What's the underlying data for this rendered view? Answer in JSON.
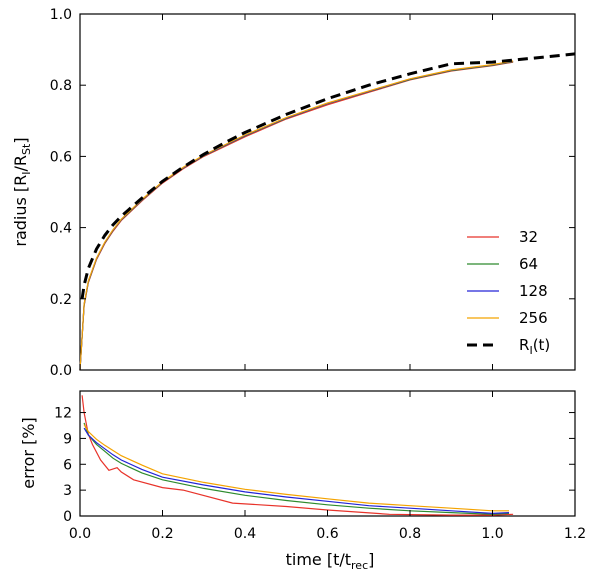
{
  "chart_data": [
    {
      "type": "line",
      "title": "",
      "xlabel": "",
      "ylabel": {
        "base": "radius [R",
        "sub1": "I",
        "mid": "/R",
        "sub2": "St",
        "close": "]"
      },
      "xlim": [
        0.0,
        1.2
      ],
      "ylim": [
        0.0,
        1.0
      ],
      "xticks": [
        "0.0",
        "0.2",
        "0.4",
        "0.6",
        "0.8",
        "1.0",
        "1.2"
      ],
      "yticks": [
        "0.0",
        "0.2",
        "0.4",
        "0.6",
        "0.8",
        "1.0"
      ],
      "xtick_values": [
        0.0,
        0.2,
        0.4,
        0.6,
        0.8,
        1.0,
        1.2
      ],
      "ytick_values": [
        0.0,
        0.2,
        0.4,
        0.6,
        0.8,
        1.0
      ],
      "grid": false,
      "legend_position": "lower-right",
      "series": [
        {
          "name": "32",
          "color": "#e8332a",
          "dash": "solid",
          "x": [
            0.0,
            0.01,
            0.02,
            0.04,
            0.06,
            0.08,
            0.1,
            0.15,
            0.2,
            0.25,
            0.3,
            0.4,
            0.5,
            0.6,
            0.7,
            0.8,
            0.9,
            1.0,
            1.05
          ],
          "y": [
            0.0,
            0.18,
            0.245,
            0.31,
            0.355,
            0.39,
            0.42,
            0.475,
            0.525,
            0.565,
            0.6,
            0.655,
            0.705,
            0.745,
            0.78,
            0.815,
            0.84,
            0.855,
            0.865
          ]
        },
        {
          "name": "64",
          "color": "#2e8b2e",
          "dash": "solid",
          "x": [
            0.0,
            0.01,
            0.02,
            0.04,
            0.06,
            0.08,
            0.1,
            0.15,
            0.2,
            0.25,
            0.3,
            0.4,
            0.5,
            0.6,
            0.7,
            0.8,
            0.9,
            1.0,
            1.05
          ],
          "y": [
            0.0,
            0.182,
            0.247,
            0.312,
            0.357,
            0.392,
            0.422,
            0.477,
            0.527,
            0.567,
            0.602,
            0.658,
            0.707,
            0.748,
            0.782,
            0.816,
            0.841,
            0.856,
            0.866
          ]
        },
        {
          "name": "128",
          "color": "#2424d6",
          "dash": "solid",
          "x": [
            0.0,
            0.01,
            0.02,
            0.04,
            0.06,
            0.08,
            0.1,
            0.15,
            0.2,
            0.25,
            0.3,
            0.4,
            0.5,
            0.6,
            0.7,
            0.8,
            0.9,
            1.0,
            1.05
          ],
          "y": [
            0.0,
            0.184,
            0.249,
            0.313,
            0.358,
            0.393,
            0.423,
            0.478,
            0.528,
            0.568,
            0.603,
            0.659,
            0.708,
            0.749,
            0.783,
            0.817,
            0.842,
            0.857,
            0.867
          ]
        },
        {
          "name": "256",
          "color": "#f4a300",
          "dash": "solid",
          "x": [
            0.0,
            0.01,
            0.02,
            0.04,
            0.06,
            0.08,
            0.1,
            0.15,
            0.2,
            0.25,
            0.3,
            0.4,
            0.5,
            0.6,
            0.7,
            0.8,
            0.9,
            1.0,
            1.05
          ],
          "y": [
            0.0,
            0.185,
            0.25,
            0.314,
            0.359,
            0.394,
            0.424,
            0.479,
            0.529,
            0.569,
            0.604,
            0.66,
            0.709,
            0.75,
            0.784,
            0.818,
            0.843,
            0.858,
            0.868
          ]
        },
        {
          "name": {
            "base": "R",
            "sub": "I",
            "suffix": "(t)"
          },
          "color": "#000000",
          "dash": "dashed",
          "x": [
            0.005,
            0.01,
            0.02,
            0.04,
            0.06,
            0.08,
            0.1,
            0.15,
            0.2,
            0.25,
            0.3,
            0.35,
            0.4,
            0.5,
            0.6,
            0.7,
            0.8,
            0.9,
            1.0,
            1.1,
            1.2
          ],
          "y": [
            0.2,
            0.238,
            0.285,
            0.34,
            0.378,
            0.408,
            0.432,
            0.483,
            0.53,
            0.57,
            0.606,
            0.638,
            0.667,
            0.718,
            0.762,
            0.8,
            0.832,
            0.86,
            0.865,
            0.876,
            0.888
          ]
        }
      ]
    },
    {
      "type": "line",
      "title": "",
      "xlabel": {
        "base": "time [t/t",
        "sub": "rec",
        "close": "]"
      },
      "ylabel": "error [%]",
      "xlim": [
        0.0,
        1.2
      ],
      "ylim": [
        0.0,
        14.5
      ],
      "xticks": [
        "0.0",
        "0.2",
        "0.4",
        "0.6",
        "0.8",
        "1.0",
        "1.2"
      ],
      "yticks": [
        "0",
        "3",
        "6",
        "9",
        "12"
      ],
      "xtick_values": [
        0.0,
        0.2,
        0.4,
        0.6,
        0.8,
        1.0,
        1.2
      ],
      "ytick_values": [
        0,
        3,
        6,
        9,
        12
      ],
      "grid": false,
      "series": [
        {
          "name": "32",
          "color": "#e8332a",
          "x": [
            0.005,
            0.01,
            0.02,
            0.03,
            0.05,
            0.07,
            0.09,
            0.1,
            0.13,
            0.2,
            0.25,
            0.37,
            0.5,
            0.6,
            0.75,
            0.9,
            1.0,
            1.05
          ],
          "y": [
            14.0,
            12.0,
            9.5,
            8.3,
            6.5,
            5.3,
            5.6,
            5.1,
            4.2,
            3.3,
            3.0,
            1.5,
            1.1,
            0.7,
            0.2,
            0.1,
            0.1,
            0.2
          ]
        },
        {
          "name": "64",
          "color": "#2e8b2e",
          "x": [
            0.01,
            0.02,
            0.04,
            0.06,
            0.08,
            0.1,
            0.15,
            0.2,
            0.3,
            0.4,
            0.5,
            0.6,
            0.7,
            0.8,
            0.9,
            1.0,
            1.04
          ],
          "y": [
            10.8,
            9.4,
            8.3,
            7.5,
            6.7,
            6.1,
            5.0,
            4.2,
            3.2,
            2.4,
            1.8,
            1.3,
            0.9,
            0.6,
            0.4,
            0.2,
            0.3
          ]
        },
        {
          "name": "128",
          "color": "#2424d6",
          "x": [
            0.01,
            0.02,
            0.04,
            0.06,
            0.08,
            0.1,
            0.15,
            0.2,
            0.3,
            0.4,
            0.5,
            0.6,
            0.7,
            0.8,
            0.9,
            1.0,
            1.04
          ],
          "y": [
            10.2,
            9.4,
            8.5,
            7.8,
            7.1,
            6.5,
            5.4,
            4.5,
            3.6,
            2.8,
            2.2,
            1.7,
            1.2,
            0.9,
            0.6,
            0.3,
            0.4
          ]
        },
        {
          "name": "256",
          "color": "#f4a300",
          "x": [
            0.01,
            0.02,
            0.04,
            0.06,
            0.08,
            0.1,
            0.15,
            0.2,
            0.3,
            0.4,
            0.5,
            0.6,
            0.7,
            0.8,
            0.9,
            1.0,
            1.04
          ],
          "y": [
            10.6,
            9.8,
            8.9,
            8.2,
            7.6,
            7.0,
            5.9,
            4.9,
            3.9,
            3.1,
            2.5,
            2.0,
            1.5,
            1.2,
            0.9,
            0.6,
            0.6
          ]
        }
      ]
    }
  ]
}
